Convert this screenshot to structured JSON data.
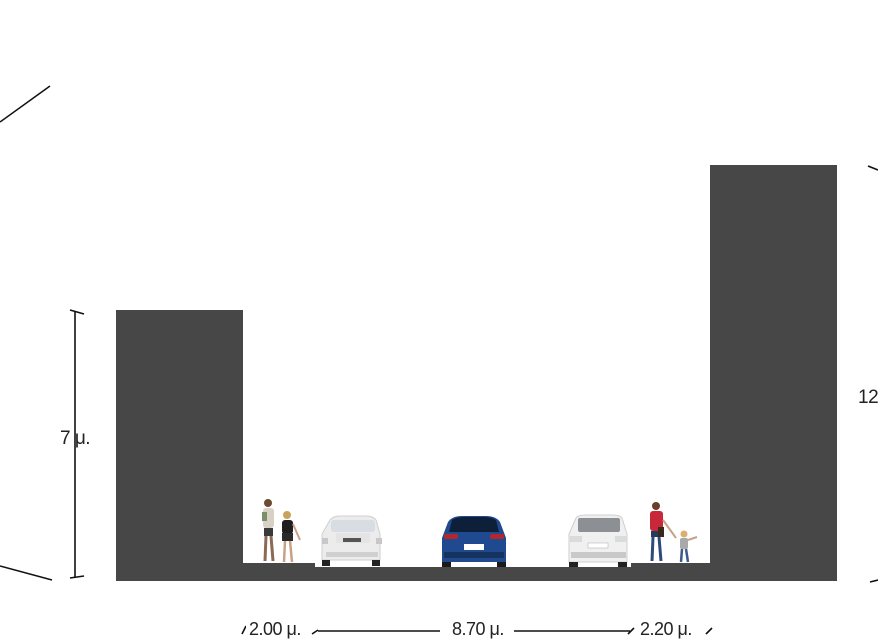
{
  "dimensions": {
    "left_building_height": "7 μ.",
    "right_building_height": "12",
    "left_sidewalk_width": "2.00 μ.",
    "road_width": "8.70 μ.",
    "right_sidewalk_width": "2.20 μ."
  },
  "colors": {
    "building": "#474747",
    "ground": "#474747",
    "car_white": "#eeeeee",
    "car_blue": "#1f4a8f",
    "dimension_line": "#111111"
  },
  "figures": [
    "pedestrian-couple",
    "white-car",
    "blue-car",
    "white-suv",
    "pedestrian-with-child"
  ]
}
